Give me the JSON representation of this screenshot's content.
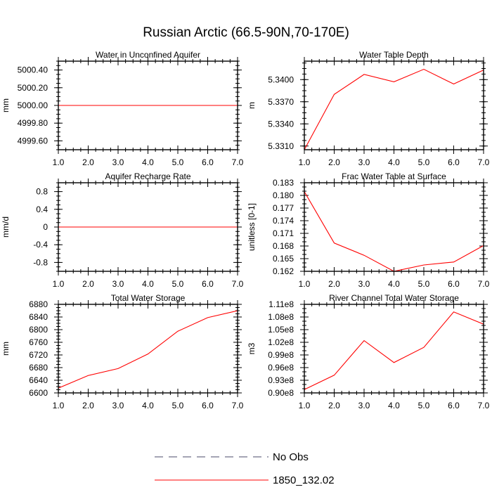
{
  "figure": {
    "title": "Russian Arctic (66.5-90N,70-170E)"
  },
  "legend": {
    "entries": [
      {
        "label": "No Obs",
        "color": "#4a4a6a",
        "dash": "dashed"
      },
      {
        "label": "1850_132.02",
        "color": "#ff0000",
        "dash": "solid"
      }
    ]
  },
  "chart_data": [
    {
      "type": "line",
      "title": "Water in Unconfined Aquifer",
      "ylabel": "mm",
      "xlim": [
        1.0,
        7.0
      ],
      "ylim": [
        4999.5,
        5000.5
      ],
      "xticks": [
        1,
        2,
        3,
        4,
        5,
        6,
        7
      ],
      "xtick_labels": [
        "1.0",
        "2.0",
        "3.0",
        "4.0",
        "5.0",
        "6.0",
        "7.0"
      ],
      "yticks": [
        4999.6,
        4999.8,
        5000.0,
        5000.2,
        5000.4
      ],
      "ytick_labels": [
        "4999.60",
        "4999.80",
        "5000.00",
        "5000.20",
        "5000.40"
      ],
      "y_minor_step": 0.05,
      "series": [
        {
          "name": "1850_132.02",
          "color": "#ff0000",
          "x": [
            1,
            2,
            3,
            4,
            5,
            6,
            7
          ],
          "values": [
            5000.0,
            5000.0,
            5000.0,
            5000.0,
            5000.0,
            5000.0,
            5000.0
          ]
        }
      ]
    },
    {
      "type": "line",
      "title": "Water Table Depth",
      "ylabel": "m",
      "xlim": [
        1.0,
        7.0
      ],
      "ylim": [
        5.3305,
        5.3425
      ],
      "xticks": [
        1,
        2,
        3,
        4,
        5,
        6,
        7
      ],
      "xtick_labels": [
        "1.0",
        "2.0",
        "3.0",
        "4.0",
        "5.0",
        "6.0",
        "7.0"
      ],
      "yticks": [
        5.331,
        5.334,
        5.337,
        5.34
      ],
      "ytick_labels": [
        "5.3310",
        "5.3340",
        "5.3370",
        "5.3400"
      ],
      "y_minor_step": 0.00075,
      "series": [
        {
          "name": "1850_132.02",
          "color": "#ff0000",
          "x": [
            1,
            2,
            3,
            4,
            5,
            6,
            7
          ],
          "values": [
            5.3305,
            5.338,
            5.3407,
            5.3397,
            5.3414,
            5.3394,
            5.3413
          ]
        }
      ]
    },
    {
      "type": "line",
      "title": "Aquifer Recharge Rate",
      "ylabel": "mm/d",
      "xlim": [
        1.0,
        7.0
      ],
      "ylim": [
        -1.0,
        1.0
      ],
      "xticks": [
        1,
        2,
        3,
        4,
        5,
        6,
        7
      ],
      "xtick_labels": [
        "1.0",
        "2.0",
        "3.0",
        "4.0",
        "5.0",
        "6.0",
        "7.0"
      ],
      "yticks": [
        -0.8,
        -0.4,
        0,
        0.4,
        0.8
      ],
      "ytick_labels": [
        "-0.8",
        "-0.4",
        "0",
        "0.4",
        "0.8"
      ],
      "y_minor_step": 0.1,
      "series": [
        {
          "name": "1850_132.02",
          "color": "#ff0000",
          "x": [
            1,
            2,
            3,
            4,
            5,
            6,
            7
          ],
          "values": [
            0,
            0,
            0,
            0,
            0,
            0,
            0
          ]
        }
      ]
    },
    {
      "type": "line",
      "title": "Frac Water Table at Surface",
      "ylabel": "unitless [0-1]",
      "xlim": [
        1.0,
        7.0
      ],
      "ylim": [
        0.162,
        0.183
      ],
      "xticks": [
        1,
        2,
        3,
        4,
        5,
        6,
        7
      ],
      "xtick_labels": [
        "1.0",
        "2.0",
        "3.0",
        "4.0",
        "5.0",
        "6.0",
        "7.0"
      ],
      "yticks": [
        0.162,
        0.165,
        0.168,
        0.171,
        0.174,
        0.177,
        0.18,
        0.183
      ],
      "ytick_labels": [
        "0.162",
        "0.165",
        "0.168",
        "0.171",
        "0.174",
        "0.177",
        "0.180",
        "0.183"
      ],
      "y_minor_step": 0.001,
      "series": [
        {
          "name": "1850_132.02",
          "color": "#ff0000",
          "x": [
            1,
            2,
            3,
            4,
            5,
            6,
            7
          ],
          "values": [
            0.1809,
            0.1687,
            0.1658,
            0.162,
            0.1635,
            0.1642,
            0.1681
          ]
        }
      ]
    },
    {
      "type": "line",
      "title": "Total Water Storage",
      "ylabel": "mm",
      "xlim": [
        1.0,
        7.0
      ],
      "ylim": [
        6600,
        6880
      ],
      "xticks": [
        1,
        2,
        3,
        4,
        5,
        6,
        7
      ],
      "xtick_labels": [
        "1.0",
        "2.0",
        "3.0",
        "4.0",
        "5.0",
        "6.0",
        "7.0"
      ],
      "yticks": [
        6600,
        6640,
        6680,
        6720,
        6760,
        6800,
        6840,
        6880
      ],
      "ytick_labels": [
        "6600",
        "6640",
        "6680",
        "6720",
        "6760",
        "6800",
        "6840",
        "6880"
      ],
      "y_minor_step": 10,
      "series": [
        {
          "name": "1850_132.02",
          "color": "#ff0000",
          "x": [
            1,
            2,
            3,
            4,
            5,
            6,
            7
          ],
          "values": [
            6615,
            6655,
            6677,
            6723,
            6795,
            6838,
            6860
          ]
        }
      ]
    },
    {
      "type": "line",
      "title": "River Channel Total Water Storage",
      "ylabel": "m3",
      "xlim": [
        1.0,
        7.0
      ],
      "ylim": [
        90000000,
        111000000
      ],
      "xticks": [
        1,
        2,
        3,
        4,
        5,
        6,
        7
      ],
      "xtick_labels": [
        "1.0",
        "2.0",
        "3.0",
        "4.0",
        "5.0",
        "6.0",
        "7.0"
      ],
      "yticks": [
        90000000,
        93000000,
        96000000,
        99000000,
        102000000,
        105000000,
        108000000,
        111000000
      ],
      "ytick_labels": [
        "0.90e8",
        "0.93e8",
        "0.96e8",
        "0.99e8",
        "1.02e8",
        "1.05e8",
        "1.08e8",
        "1.11e8"
      ],
      "y_minor_step": 1000000,
      "series": [
        {
          "name": "1850_132.02",
          "color": "#ff0000",
          "x": [
            1,
            2,
            3,
            4,
            5,
            6,
            7
          ],
          "values": [
            90800000,
            94200000,
            102400000,
            97200000,
            100800000,
            109200000,
            106300000
          ]
        }
      ]
    }
  ]
}
